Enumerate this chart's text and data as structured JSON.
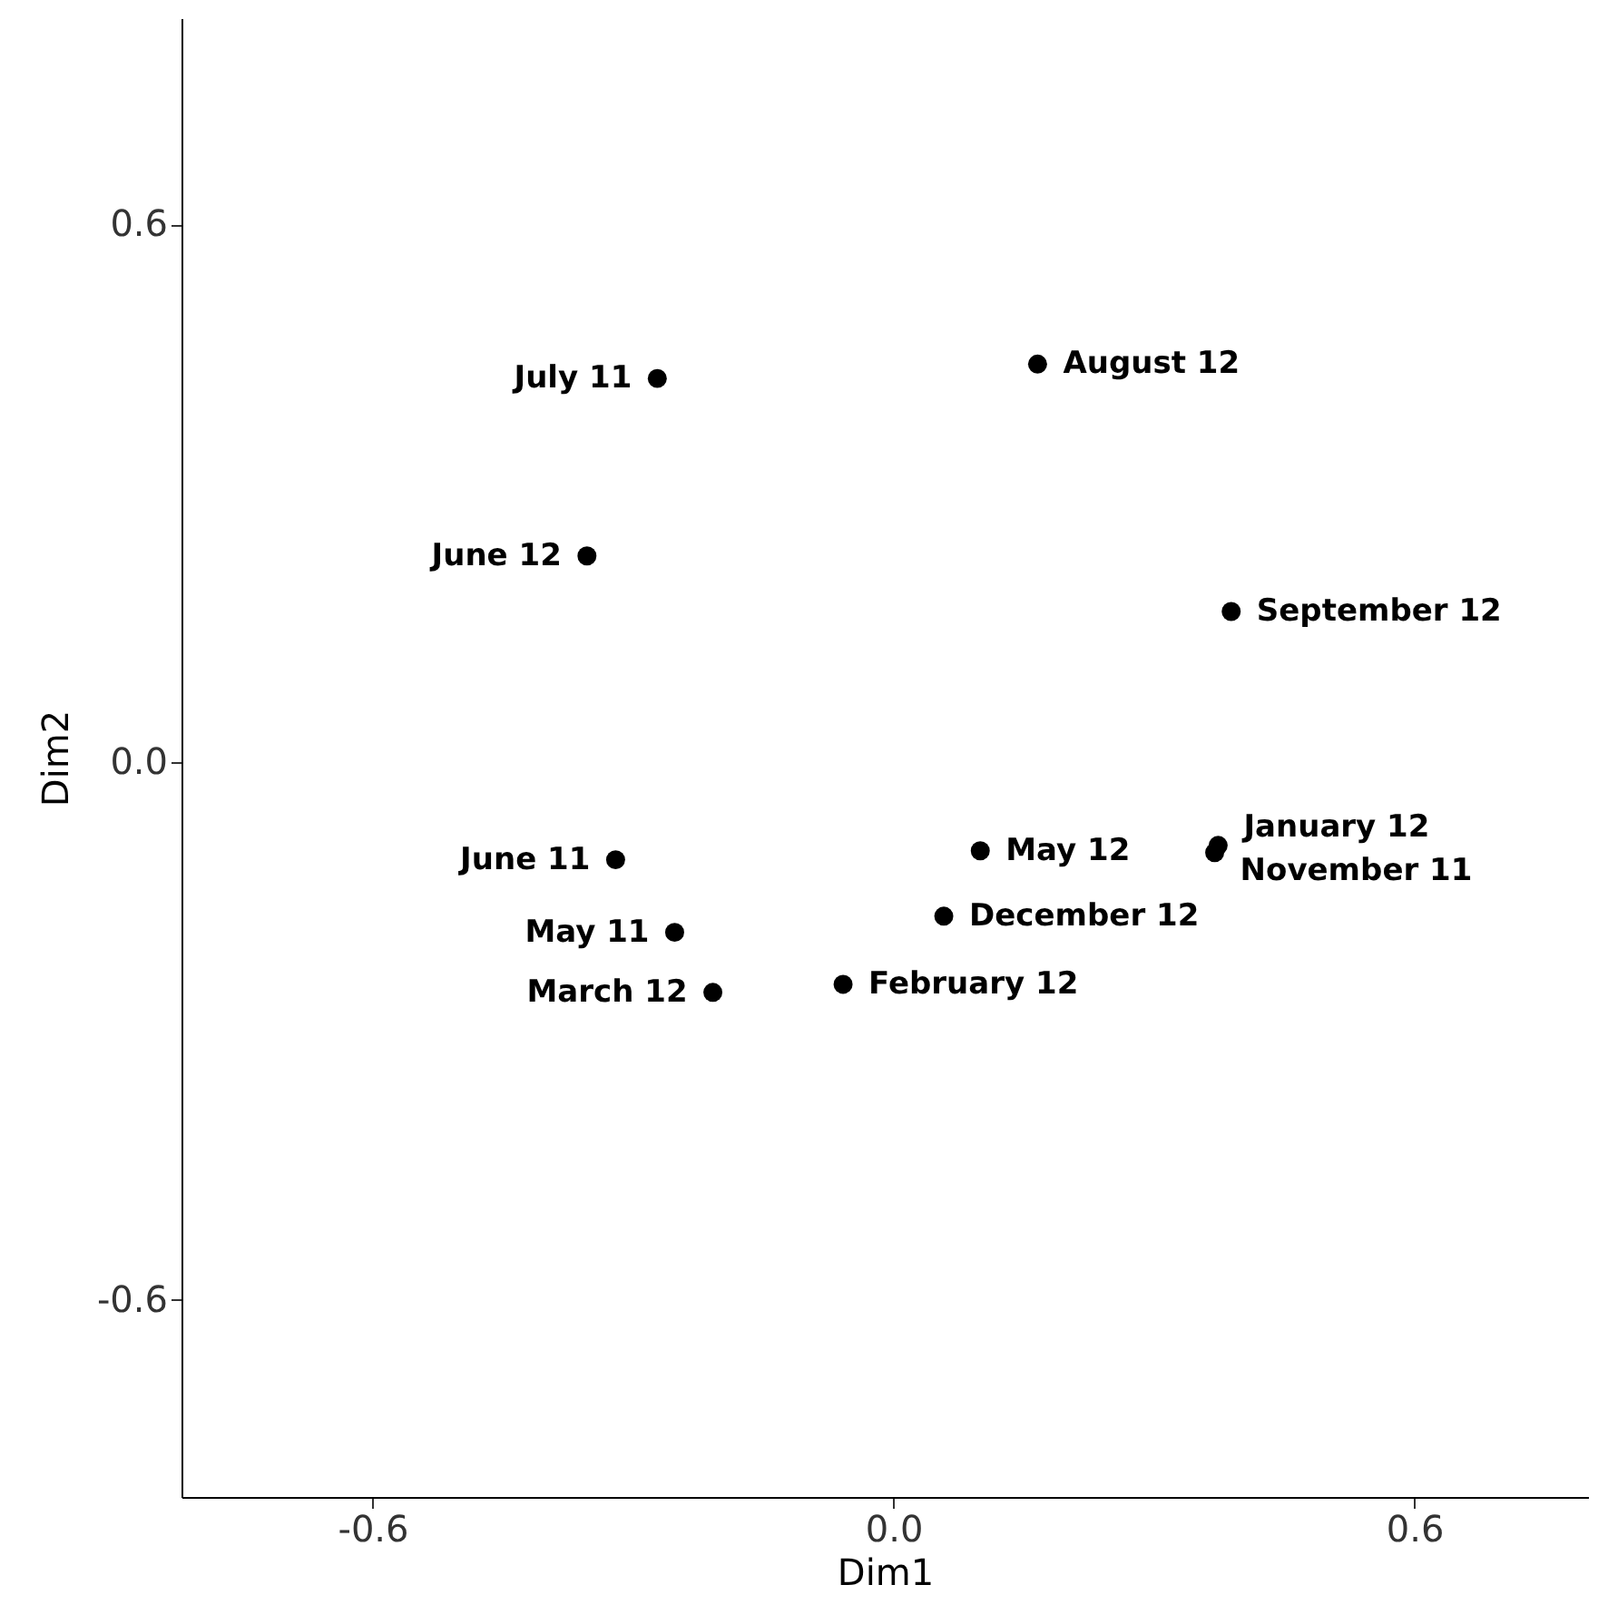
{
  "chart_data": {
    "type": "scatter",
    "xlabel": "Dim1",
    "ylabel": "Dim2",
    "x": [
      -0.272,
      0.166,
      -0.353,
      0.389,
      0.1,
      0.374,
      0.37,
      -0.32,
      0.058,
      -0.252,
      -0.058,
      -0.208
    ],
    "values": [
      0.428,
      0.444,
      0.23,
      0.168,
      -0.099,
      -0.093,
      -0.101,
      -0.109,
      -0.172,
      -0.19,
      -0.248,
      -0.257
    ],
    "color": "#000000",
    "marker": "circle",
    "grid": false,
    "legend": false,
    "xlim": [
      -0.82,
      0.8
    ],
    "ylim": [
      -0.82,
      0.83
    ],
    "xticks": [
      -0.6,
      {
        "value": 0,
        "label": "0.0"
      },
      0.6
    ],
    "yticks": [
      -0.6,
      {
        "value": 0,
        "label": "0.0"
      },
      0.6
    ],
    "annotations": [
      {
        "text": "July 11",
        "x": -0.272,
        "y": 0.428
      },
      {
        "text": "August 12",
        "x": 0.166,
        "y": 0.444
      },
      {
        "text": "June 12",
        "x": -0.353,
        "y": 0.23
      },
      {
        "text": "September 12",
        "x": 0.389,
        "y": 0.168
      },
      {
        "text": "May 12",
        "x": 0.1,
        "y": -0.099
      },
      {
        "text": "January 12",
        "x": 0.374,
        "y": -0.093
      },
      {
        "text": "November 11",
        "x": 0.37,
        "y": -0.101
      },
      {
        "text": "June 11",
        "x": -0.32,
        "y": -0.109
      },
      {
        "text": "December 12",
        "x": 0.058,
        "y": -0.172
      },
      {
        "text": "May 11",
        "x": -0.252,
        "y": -0.19
      },
      {
        "text": "February 12",
        "x": -0.058,
        "y": -0.248
      },
      {
        "text": "March 12",
        "x": -0.208,
        "y": -0.257
      }
    ]
  }
}
